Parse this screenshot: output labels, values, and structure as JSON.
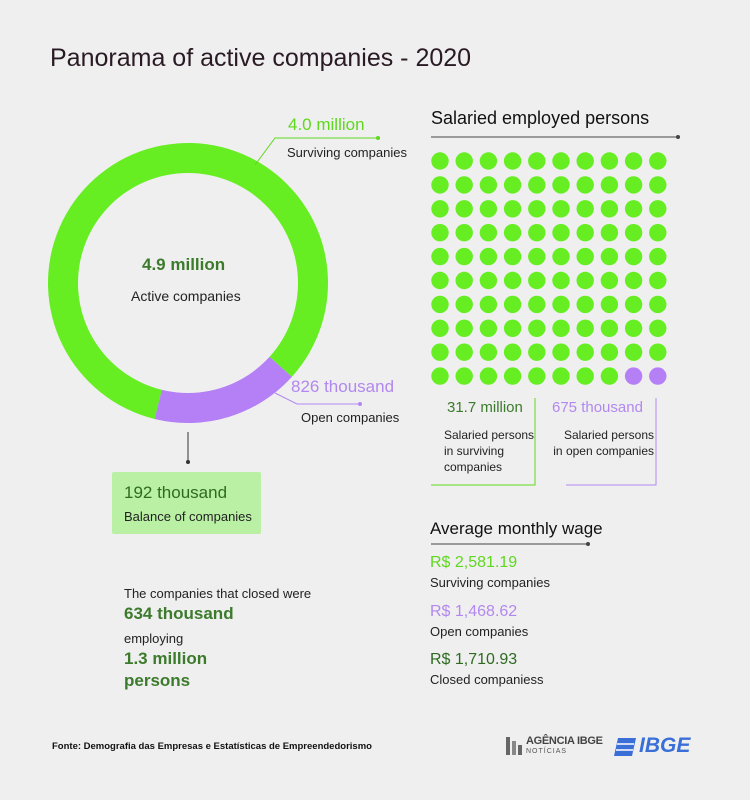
{
  "title": "Panorama of active companies - 2020",
  "colors": {
    "surviving": "#66ee22",
    "open": "#b57ff6",
    "dark_green": "#3c7a2c",
    "box": "#b9f0a4"
  },
  "donut": {
    "center_value": "4.9 million",
    "center_label": "Active companies",
    "surviving_value": "4.0 million",
    "surviving_label": "Surviving companies",
    "open_value": "826 thousand",
    "open_label": "Open companies"
  },
  "balance": {
    "value": "192 thousand",
    "label": "Balance of companies"
  },
  "closed": {
    "line1": "The companies that closed were",
    "value1": "634 thousand",
    "line2": "employing",
    "value2": "1.3 million",
    "line3": "persons"
  },
  "employed": {
    "heading": "Salaried employed persons",
    "surviving_value": "31.7 million",
    "surviving_label_1": "Salaried persons",
    "surviving_label_2": "in surviving",
    "surviving_label_3": "companies",
    "open_value": "675 thousand",
    "open_label_1": "Salaried persons",
    "open_label_2": "in open companies"
  },
  "wage": {
    "heading": "Average monthly wage",
    "items": [
      {
        "value": "R$ 2,581.19",
        "label": "Surviving companies"
      },
      {
        "value": "R$ 1,468.62",
        "label": "Open companies"
      },
      {
        "value": "R$ 1,710.93",
        "label": "Closed companiess"
      }
    ]
  },
  "footer": {
    "source": "Fonte: Demografia das Empresas e Estatísticas de Empreendedorismo",
    "logo_agencia_1": "AGÊNCIA IBGE",
    "logo_agencia_2": "NOTÍCIAS",
    "logo_ibge": "IBGE"
  },
  "chart_data": [
    {
      "type": "pie",
      "categories": [
        "Surviving companies",
        "Open companies"
      ],
      "values": [
        4.0,
        0.826
      ],
      "total": 4.9,
      "unit": "million"
    },
    {
      "type": "waffle",
      "categories": [
        "Salaried persons in surviving companies",
        "Salaried persons in open companies"
      ],
      "values": [
        31.7,
        0.675
      ],
      "dots": [
        98,
        2
      ],
      "rows": 10,
      "cols": 10
    }
  ]
}
